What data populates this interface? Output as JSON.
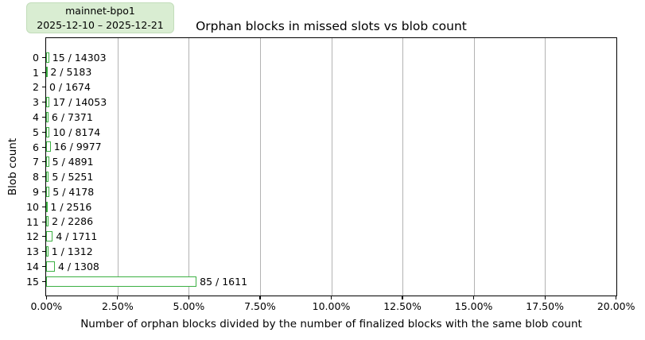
{
  "badge": {
    "line1": "mainnet-bpo1",
    "line2": "2025-12-10 – 2025-12-21"
  },
  "colors": {
    "bar_edge": "#3cb043",
    "bar_fill": "#ffffff",
    "grid": "#b3b3b3",
    "badge_bg": "#d9edd2",
    "spine": "#000000"
  },
  "chart_data": {
    "type": "bar",
    "orientation": "horizontal",
    "title": "Orphan blocks in missed slots vs blob count",
    "xlabel": "Number of orphan blocks divided by the number of finalized blocks with the same blob count",
    "ylabel": "Blob count",
    "xlim": [
      0,
      20
    ],
    "grid": "vertical",
    "legend_position": "top-left-badge",
    "categories": [
      "0",
      "1",
      "2",
      "3",
      "4",
      "5",
      "6",
      "7",
      "8",
      "9",
      "10",
      "11",
      "12",
      "13",
      "14",
      "15"
    ],
    "bars": [
      {
        "blob_count": "0",
        "orphans": 15,
        "finalized": 14303,
        "pct": 0.1049,
        "label": "15 / 14303"
      },
      {
        "blob_count": "1",
        "orphans": 2,
        "finalized": 5183,
        "pct": 0.0386,
        "label": "2 / 5183"
      },
      {
        "blob_count": "2",
        "orphans": 0,
        "finalized": 1674,
        "pct": 0.0,
        "label": "0 / 1674"
      },
      {
        "blob_count": "3",
        "orphans": 17,
        "finalized": 14053,
        "pct": 0.121,
        "label": "17 / 14053"
      },
      {
        "blob_count": "4",
        "orphans": 6,
        "finalized": 7371,
        "pct": 0.0814,
        "label": "6 / 7371"
      },
      {
        "blob_count": "5",
        "orphans": 10,
        "finalized": 8174,
        "pct": 0.1223,
        "label": "10 / 8174"
      },
      {
        "blob_count": "6",
        "orphans": 16,
        "finalized": 9977,
        "pct": 0.1604,
        "label": "16 / 9977"
      },
      {
        "blob_count": "7",
        "orphans": 5,
        "finalized": 4891,
        "pct": 0.1022,
        "label": "5 / 4891"
      },
      {
        "blob_count": "8",
        "orphans": 5,
        "finalized": 5251,
        "pct": 0.0952,
        "label": "5 / 5251"
      },
      {
        "blob_count": "9",
        "orphans": 5,
        "finalized": 4178,
        "pct": 0.1197,
        "label": "5 / 4178"
      },
      {
        "blob_count": "10",
        "orphans": 1,
        "finalized": 2516,
        "pct": 0.0397,
        "label": "1 / 2516"
      },
      {
        "blob_count": "11",
        "orphans": 2,
        "finalized": 2286,
        "pct": 0.0875,
        "label": "2 / 2286"
      },
      {
        "blob_count": "12",
        "orphans": 4,
        "finalized": 1711,
        "pct": 0.2338,
        "label": "4 / 1711"
      },
      {
        "blob_count": "13",
        "orphans": 1,
        "finalized": 1312,
        "pct": 0.0762,
        "label": "1 / 1312"
      },
      {
        "blob_count": "14",
        "orphans": 4,
        "finalized": 1308,
        "pct": 0.3058,
        "label": "4 / 1308"
      },
      {
        "blob_count": "15",
        "orphans": 85,
        "finalized": 1611,
        "pct": 5.2762,
        "label": "85 / 1611"
      }
    ],
    "xticks": [
      {
        "value": 0,
        "label": "0.00%"
      },
      {
        "value": 2.5,
        "label": "2.50%"
      },
      {
        "value": 5,
        "label": "5.00%"
      },
      {
        "value": 7.5,
        "label": "7.50%"
      },
      {
        "value": 10,
        "label": "10.00%"
      },
      {
        "value": 12.5,
        "label": "12.50%"
      },
      {
        "value": 15,
        "label": "15.00%"
      },
      {
        "value": 17.5,
        "label": "17.50%"
      },
      {
        "value": 20,
        "label": "20.00%"
      }
    ]
  }
}
